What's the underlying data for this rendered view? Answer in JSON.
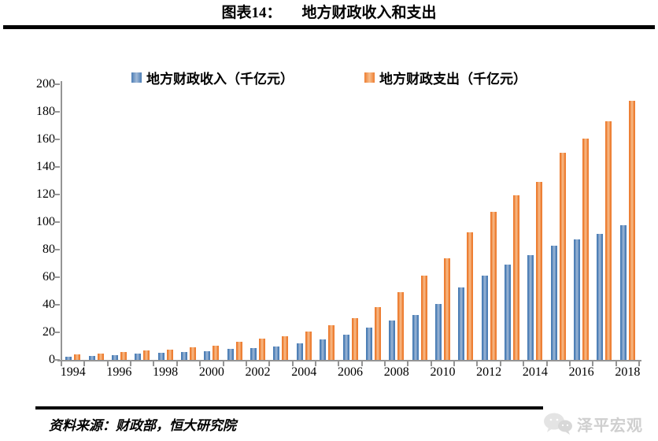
{
  "header": {
    "label": "图表14：",
    "title": "地方财政收入和支出"
  },
  "chart_data": {
    "type": "bar",
    "categories": [
      1994,
      1995,
      1996,
      1997,
      1998,
      1999,
      2000,
      2001,
      2002,
      2003,
      2004,
      2005,
      2006,
      2007,
      2008,
      2009,
      2010,
      2011,
      2012,
      2013,
      2014,
      2015,
      2016,
      2017,
      2018
    ],
    "series": [
      {
        "key": "revenue",
        "name": "地方财政收入（千亿元）",
        "color": "#4b7db5",
        "color_light": "#a0b9d7",
        "values": [
          2.3,
          3.0,
          3.7,
          4.4,
          5.0,
          5.6,
          6.4,
          7.8,
          8.5,
          9.8,
          11.9,
          15.1,
          18.3,
          23.6,
          28.6,
          32.6,
          40.6,
          52.5,
          61.1,
          69.0,
          75.9,
          83.0,
          87.2,
          91.5,
          97.9
        ]
      },
      {
        "key": "expenditure",
        "name": "地方财政支出（千亿元）",
        "color": "#ed7d31",
        "color_light": "#f8be8c",
        "values": [
          4.0,
          4.8,
          5.8,
          6.7,
          7.7,
          9.0,
          10.4,
          13.1,
          15.3,
          17.2,
          20.6,
          25.2,
          30.4,
          38.3,
          49.0,
          61.0,
          73.9,
          92.7,
          107.2,
          119.7,
          129.2,
          150.3,
          160.4,
          173.2,
          188.2
        ]
      }
    ],
    "title": "图表14： 地方财政收入和支出",
    "xlabel": "",
    "ylabel": "",
    "ylim": [
      0,
      200
    ],
    "ytick_step": 20,
    "ytick_labels": [
      "0",
      "20",
      "40",
      "60",
      "80",
      "100",
      "120",
      "140",
      "160",
      "180",
      "200"
    ],
    "xtick_labels": [
      "1994",
      "1996",
      "1998",
      "2000",
      "2002",
      "2004",
      "2006",
      "2008",
      "2010",
      "2012",
      "2014",
      "2016",
      "2018"
    ],
    "legend_position": "top",
    "grid": false,
    "axis_color": "#949494"
  },
  "footer": {
    "source": "资料来源：财政部，恒大研究院",
    "logo_text": "泽平宏观"
  }
}
